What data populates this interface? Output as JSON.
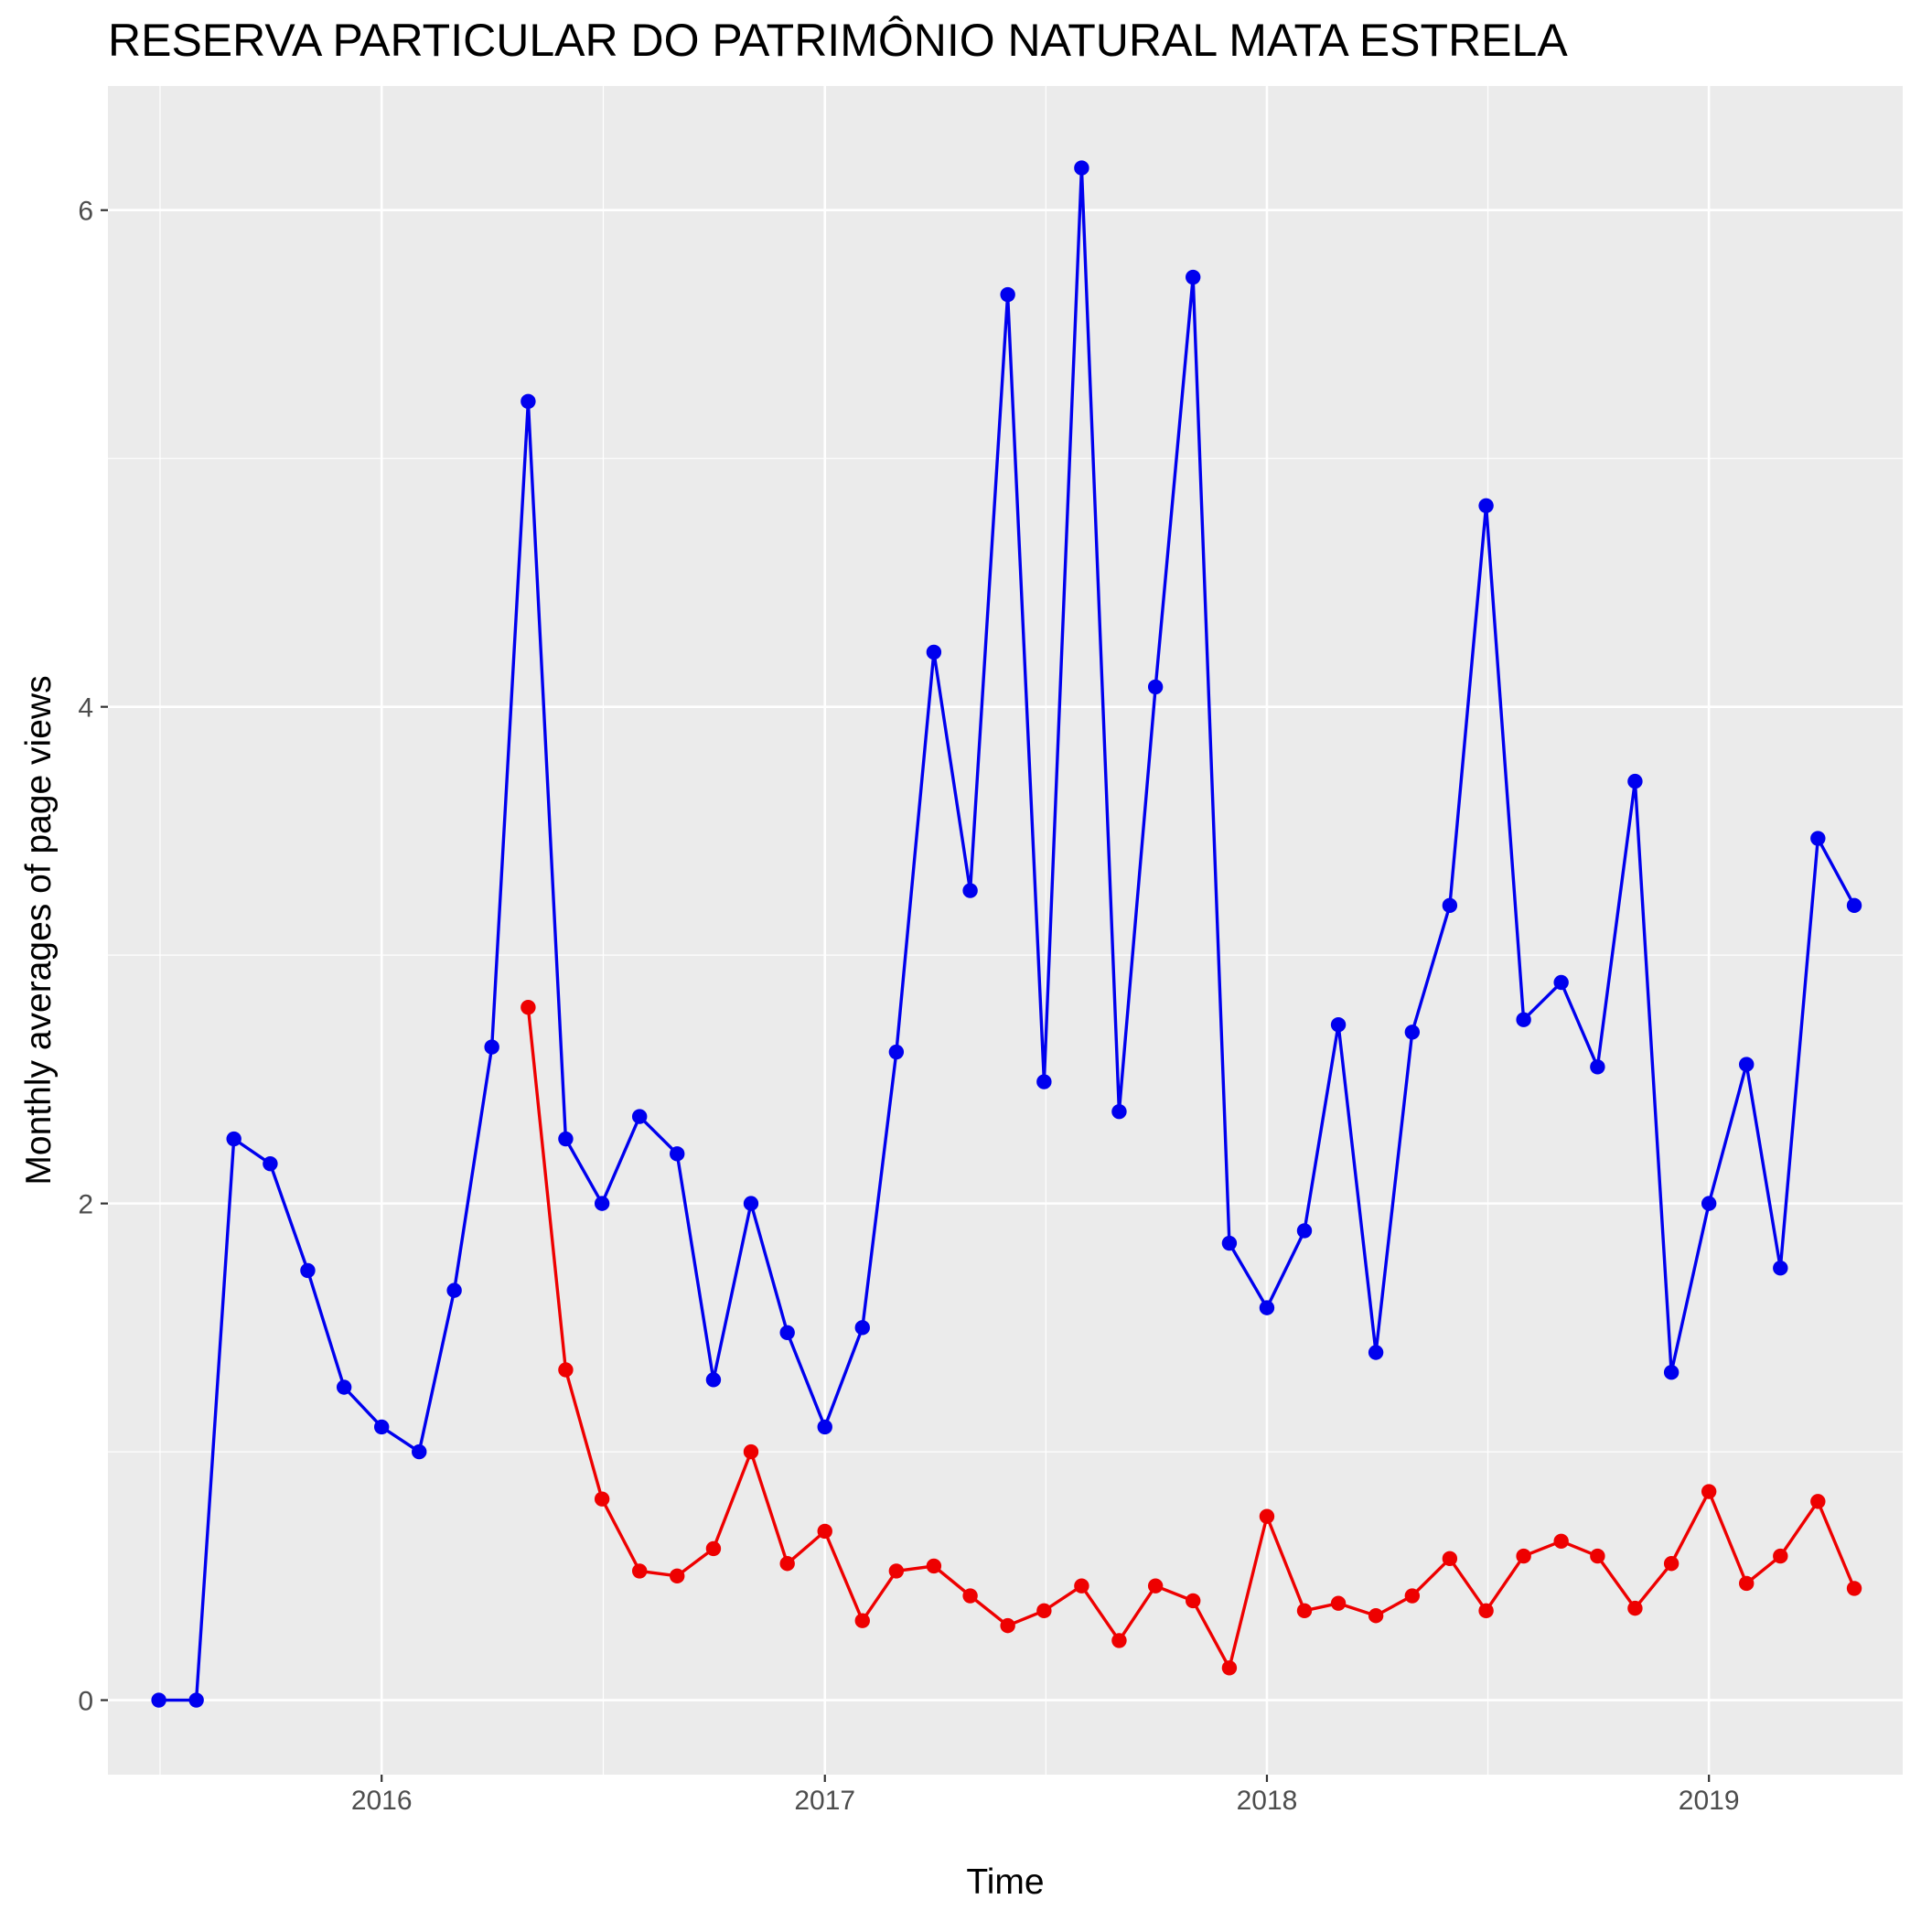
{
  "chart_data": {
    "type": "line",
    "title": "RESERVA PARTICULAR DO PATRIMÔNIO NATURAL MATA ESTRELA",
    "xlabel": "Time",
    "ylabel": "Monthly averages of page views",
    "xlim": [
      "2015-05-20",
      "2019-06-10"
    ],
    "ylim": [
      -0.3,
      6.5
    ],
    "x_ticks": [
      {
        "date": "2016-01-01",
        "label": "2016"
      },
      {
        "date": "2017-01-01",
        "label": "2017"
      },
      {
        "date": "2018-01-01",
        "label": "2018"
      },
      {
        "date": "2019-01-01",
        "label": "2019"
      }
    ],
    "y_ticks": [
      0,
      2,
      4,
      6
    ],
    "grid": true,
    "legend": "none",
    "background": "#ebebeb",
    "series": [
      {
        "color": "#0000ee",
        "x": [
          "2015-07-01",
          "2015-08-01",
          "2015-09-01",
          "2015-10-01",
          "2015-11-01",
          "2015-12-01",
          "2016-01-01",
          "2016-02-01",
          "2016-03-01",
          "2016-04-01",
          "2016-05-01",
          "2016-06-01",
          "2016-07-01",
          "2016-08-01",
          "2016-09-01",
          "2016-10-01",
          "2016-11-01",
          "2016-12-01",
          "2017-01-01",
          "2017-02-01",
          "2017-03-01",
          "2017-04-01",
          "2017-05-01",
          "2017-06-01",
          "2017-07-01",
          "2017-08-01",
          "2017-09-01",
          "2017-10-01",
          "2017-11-01",
          "2017-12-01",
          "2018-01-01",
          "2018-02-01",
          "2018-03-01",
          "2018-04-01",
          "2018-05-01",
          "2018-06-01",
          "2018-07-01",
          "2018-08-01",
          "2018-09-01",
          "2018-10-01",
          "2018-11-01",
          "2018-12-01",
          "2019-01-01",
          "2019-02-01",
          "2019-03-01",
          "2019-04-01",
          "2019-05-01"
        ],
        "values": [
          0.0,
          0.0,
          2.26,
          2.16,
          1.73,
          1.26,
          1.1,
          1.0,
          1.65,
          2.63,
          5.23,
          2.26,
          2.0,
          2.35,
          2.2,
          1.29,
          2.0,
          1.48,
          1.1,
          1.5,
          2.61,
          4.22,
          3.26,
          5.66,
          2.49,
          6.17,
          2.37,
          4.08,
          5.73,
          1.84,
          1.58,
          1.89,
          2.72,
          1.4,
          2.69,
          3.2,
          4.81,
          2.74,
          2.89,
          2.55,
          3.7,
          1.32,
          2.0,
          2.56,
          1.74,
          3.47,
          3.2
        ]
      },
      {
        "color": "#ee0000",
        "x": [
          "2016-05-01",
          "2016-06-01",
          "2016-07-01",
          "2016-08-01",
          "2016-09-01",
          "2016-10-01",
          "2016-11-01",
          "2016-12-01",
          "2017-01-01",
          "2017-02-01",
          "2017-03-01",
          "2017-04-01",
          "2017-05-01",
          "2017-06-01",
          "2017-07-01",
          "2017-08-01",
          "2017-09-01",
          "2017-10-01",
          "2017-11-01",
          "2017-12-01",
          "2018-01-01",
          "2018-02-01",
          "2018-03-01",
          "2018-04-01",
          "2018-05-01",
          "2018-06-01",
          "2018-07-01",
          "2018-08-01",
          "2018-09-01",
          "2018-10-01",
          "2018-11-01",
          "2018-12-01",
          "2019-01-01",
          "2019-02-01",
          "2019-03-01",
          "2019-04-01",
          "2019-05-01"
        ],
        "values": [
          2.79,
          1.33,
          0.81,
          0.52,
          0.5,
          0.61,
          1.0,
          0.55,
          0.68,
          0.32,
          0.52,
          0.54,
          0.42,
          0.3,
          0.36,
          0.46,
          0.24,
          0.46,
          0.4,
          0.13,
          0.74,
          0.36,
          0.39,
          0.34,
          0.42,
          0.57,
          0.36,
          0.58,
          0.64,
          0.58,
          0.37,
          0.55,
          0.84,
          0.47,
          0.58,
          0.8,
          0.45
        ]
      }
    ]
  }
}
